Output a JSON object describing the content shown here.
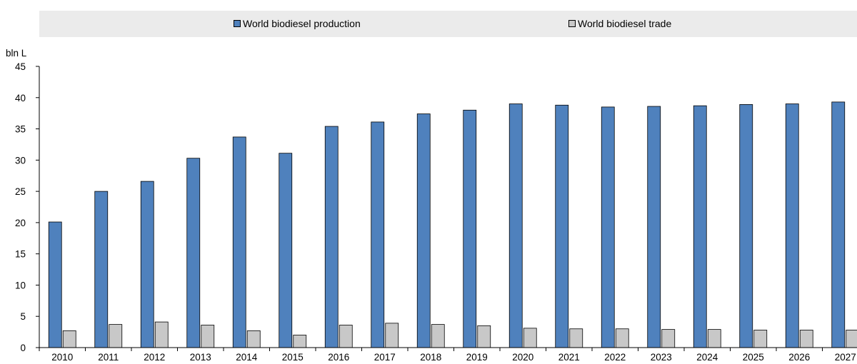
{
  "chart_data": {
    "type": "bar",
    "ylabel": "bln L",
    "ylim": [
      0,
      45
    ],
    "yticks": [
      0,
      5,
      10,
      15,
      20,
      25,
      30,
      35,
      40,
      45
    ],
    "grid": false,
    "legend_position": "top",
    "categories": [
      "2010",
      "2011",
      "2012",
      "2013",
      "2014",
      "2015",
      "2016",
      "2017",
      "2018",
      "2019",
      "2020",
      "2021",
      "2022",
      "2023",
      "2024",
      "2025",
      "2026",
      "2027"
    ],
    "series": [
      {
        "name": "World biodiesel production",
        "color": "#4f81bd",
        "values": [
          20.1,
          25.0,
          26.6,
          30.3,
          33.7,
          31.1,
          35.4,
          36.1,
          37.4,
          38.0,
          39.0,
          38.8,
          38.5,
          38.6,
          38.7,
          38.9,
          39.0,
          39.3
        ]
      },
      {
        "name": "World biodiesel trade",
        "color": "#c8c8c8",
        "values": [
          2.7,
          3.7,
          4.1,
          3.6,
          2.7,
          2.0,
          3.6,
          3.9,
          3.7,
          3.5,
          3.1,
          3.0,
          3.0,
          2.9,
          2.9,
          2.8,
          2.8,
          2.8
        ]
      }
    ]
  }
}
